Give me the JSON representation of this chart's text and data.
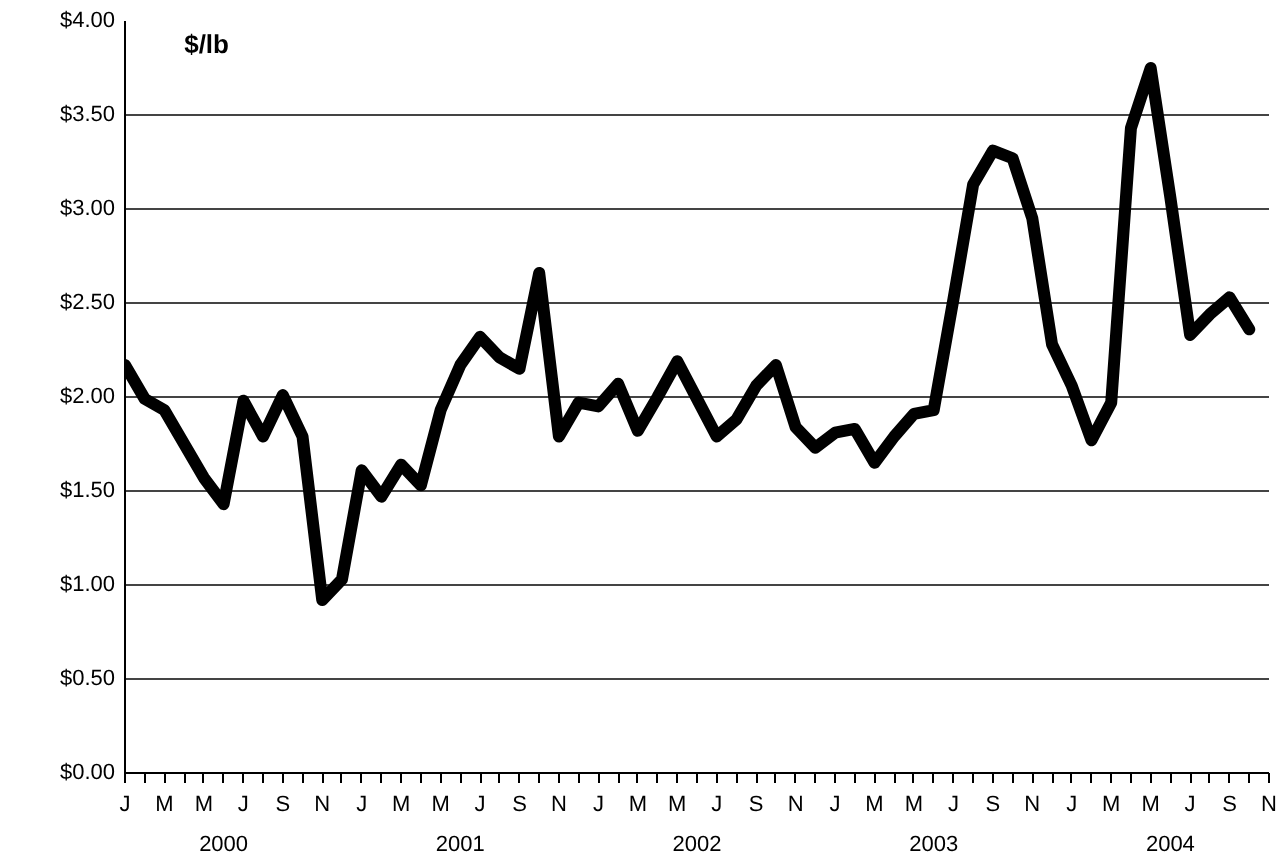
{
  "chart_data": {
    "type": "line",
    "ylabel": "$/lb",
    "categories": [
      "J",
      null,
      "M",
      null,
      "M",
      null,
      "J",
      null,
      "S",
      null,
      "N",
      null,
      "J",
      null,
      "M",
      null,
      "M",
      null,
      "J",
      null,
      "S",
      null,
      "N",
      null,
      "J",
      null,
      "M",
      null,
      "M",
      null,
      "J",
      null,
      "S",
      null,
      "N",
      null,
      "J",
      null,
      "M",
      null,
      "M",
      null,
      "J",
      null,
      "S",
      null,
      "N",
      null,
      "J",
      null,
      "M",
      null,
      "M",
      null,
      "J",
      null,
      "S",
      null,
      "N"
    ],
    "series": [
      {
        "color": "#000000",
        "values": [
          2.17,
          1.99,
          1.93,
          1.75,
          1.57,
          1.43,
          1.98,
          1.79,
          2.01,
          1.79,
          0.92,
          1.03,
          1.61,
          1.47,
          1.64,
          1.53,
          1.93,
          2.17,
          2.32,
          2.21,
          2.15,
          2.66,
          1.79,
          1.97,
          1.95,
          2.07,
          1.82,
          2.0,
          2.19,
          1.99,
          1.79,
          1.88,
          2.06,
          2.17,
          1.84,
          1.73,
          1.81,
          1.83,
          1.65,
          1.79,
          1.91,
          1.93,
          2.52,
          3.13,
          3.31,
          3.27,
          2.95,
          2.28,
          2.06,
          1.77,
          1.97,
          3.43,
          3.75,
          3.06,
          2.33,
          2.44,
          2.53,
          2.36,
          null
        ]
      }
    ],
    "ylim": [
      0,
      4
    ],
    "yticks": [
      {
        "value": 0,
        "label": "$0.00"
      },
      {
        "value": 0.5,
        "label": "$0.50"
      },
      {
        "value": 1,
        "label": "$1.00"
      },
      {
        "value": 1.5,
        "label": "$1.50"
      },
      {
        "value": 2,
        "label": "$2.00"
      },
      {
        "value": 2.5,
        "label": "$2.50"
      },
      {
        "value": 3,
        "label": "$3.00"
      },
      {
        "value": 3.5,
        "label": "$3.50"
      },
      {
        "value": 4,
        "label": "$4.00"
      }
    ],
    "annotations": [
      "2000",
      "2001",
      "2002",
      "2003",
      "2004"
    ],
    "grid": "y",
    "marker": "none",
    "line_style": "solid"
  }
}
